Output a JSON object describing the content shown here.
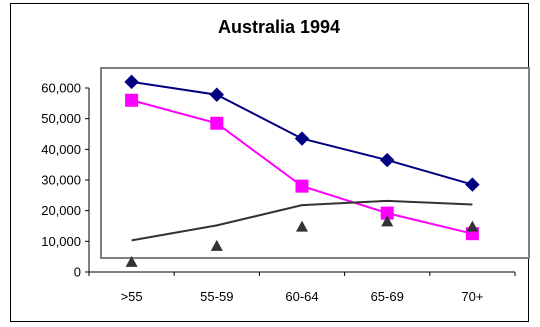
{
  "chart_data": {
    "type": "line",
    "title": "Australia 1994",
    "categories": [
      ">55",
      "55-59",
      "60-64",
      "65-69",
      "70+"
    ],
    "yticks": [
      "0",
      "10,000",
      "20,000",
      "30,000",
      "40,000",
      "50,000",
      "60,000"
    ],
    "ylim": [
      0,
      60000
    ],
    "grid": false,
    "legend": "none",
    "series": [
      {
        "values": [
          62000,
          57800,
          43500,
          36500,
          28500
        ],
        "color": "#000080",
        "marker": "diamond",
        "line": true
      },
      {
        "values": [
          56000,
          48500,
          28000,
          19200,
          12500
        ],
        "color": "#ff00ff",
        "marker": "square",
        "line": true
      },
      {
        "values": [
          10300,
          15200,
          21800,
          23200,
          22000
        ],
        "color": "#333333",
        "marker": "none",
        "line": true
      },
      {
        "values": [
          3300,
          8500,
          14800,
          16500,
          14800
        ],
        "color": "#333333",
        "marker": "triangle",
        "line": false
      }
    ]
  }
}
